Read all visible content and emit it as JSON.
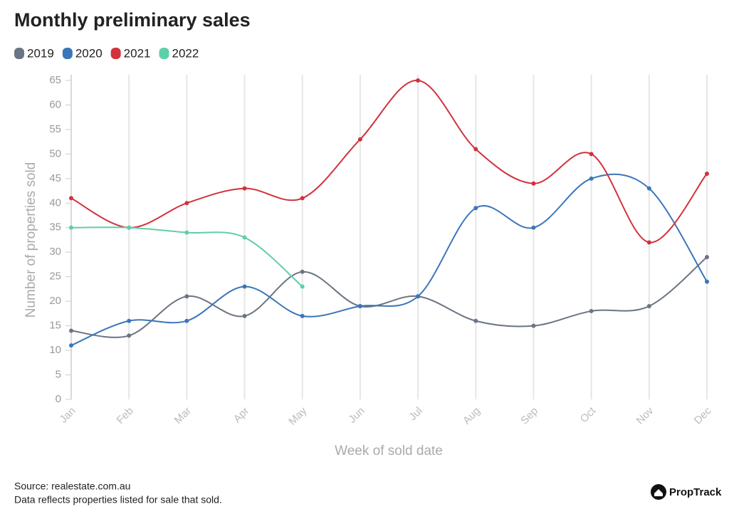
{
  "chart_data": {
    "type": "line",
    "title": "Monthly preliminary sales",
    "x_label": "Week of sold date",
    "y_label": "Number of properties sold",
    "categories": [
      "Jan",
      "Feb",
      "Mar",
      "Apr",
      "May",
      "Jun",
      "Jul",
      "Aug",
      "Sep",
      "Oct",
      "Nov",
      "Dec"
    ],
    "series": [
      {
        "name": "2019",
        "color": "#6b7483",
        "values": [
          14,
          13,
          21,
          17,
          26,
          19,
          21,
          16,
          15,
          18,
          19,
          29
        ]
      },
      {
        "name": "2020",
        "color": "#3a76b9",
        "values": [
          11,
          16,
          16,
          23,
          17,
          19,
          21,
          39,
          35,
          45,
          43,
          24
        ]
      },
      {
        "name": "2021",
        "color": "#d1323b",
        "values": [
          41,
          35,
          40,
          43,
          41,
          53,
          65,
          51,
          44,
          50,
          32,
          46
        ]
      },
      {
        "name": "2022",
        "color": "#5fcfa8",
        "values": [
          35,
          35,
          34,
          33,
          23,
          null,
          null,
          null,
          null,
          null,
          null,
          null
        ]
      }
    ],
    "ylim": [
      0,
      65
    ],
    "yticks": [
      0,
      5,
      10,
      15,
      20,
      25,
      30,
      35,
      40,
      45,
      50,
      55,
      60,
      65
    ],
    "smooth": true,
    "legend": "top-left"
  },
  "footer": {
    "source": "Source: realestate.com.au",
    "note": "Data reflects properties listed for sale that sold.",
    "logo": "PropTrack"
  }
}
